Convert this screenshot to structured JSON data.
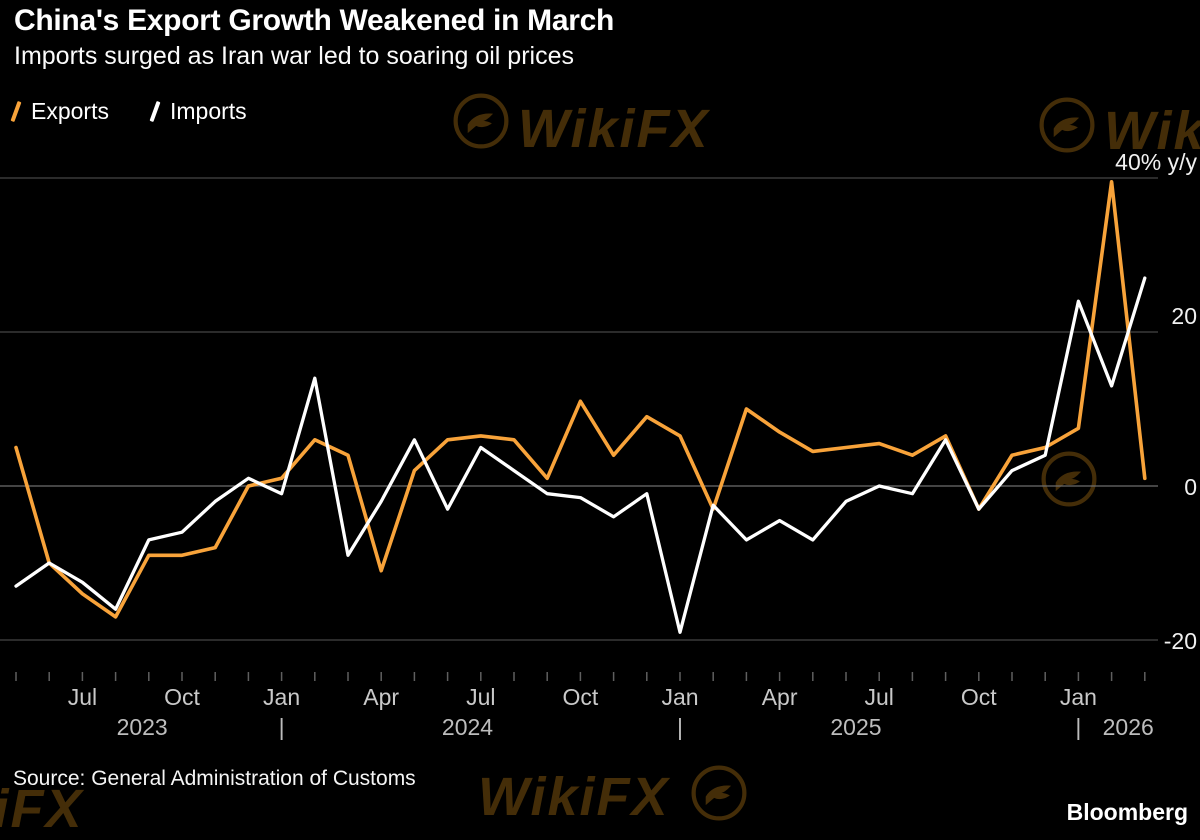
{
  "header": {
    "title": "China's Export Growth Weakened in March",
    "subtitle": "Imports surged as Iran war led to soaring oil prices"
  },
  "legend": [
    {
      "label": "Exports",
      "color": "#F8A33A"
    },
    {
      "label": "Imports",
      "color": "#FFFFFF"
    }
  ],
  "footer": {
    "source": "Source: General Administration of Customs",
    "brand": "Bloomberg"
  },
  "watermark": {
    "text": "WikiFX"
  },
  "colors": {
    "background": "#000000",
    "exports_line": "#F8A33A",
    "imports_line": "#FFFFFF",
    "grid": "#454545",
    "zero_line": "#6e6e6e",
    "month_tick": "#5f5f5f",
    "y_axis_text": "#f0f0f0",
    "x_tick_text": "#c9c9c9",
    "year_text": "#bdbdbd"
  },
  "chart_data": {
    "type": "line",
    "title": "China's Export Growth Weakened in March",
    "subtitle": "Imports surged as Iran war led to soaring oil prices",
    "ylabel": "% y/y",
    "grid": true,
    "legend_position": "top-left",
    "x": [
      "May 2023",
      "Jun 2023",
      "Jul 2023",
      "Aug 2023",
      "Sep 2023",
      "Oct 2023",
      "Nov 2023",
      "Dec 2023",
      "Jan 2024",
      "Feb 2024",
      "Mar 2024",
      "Apr 2024",
      "May 2024",
      "Jun 2024",
      "Jul 2024",
      "Aug 2024",
      "Sep 2024",
      "Oct 2024",
      "Nov 2024",
      "Dec 2024",
      "Jan 2025",
      "Feb 2025",
      "Mar 2025",
      "Apr 2025",
      "May 2025",
      "Jun 2025",
      "Jul 2025",
      "Aug 2025",
      "Sep 2025",
      "Oct 2025",
      "Nov 2025",
      "Dec 2025",
      "Jan 2026",
      "Feb 2026",
      "Mar 2026"
    ],
    "series": [
      {
        "name": "Exports",
        "color": "#F8A33A",
        "values": [
          5,
          -10,
          -14,
          -17,
          -9,
          -9,
          -8,
          0,
          1,
          6,
          4,
          -11,
          2,
          6,
          6.5,
          6,
          1,
          11,
          4,
          9,
          6.5,
          -3,
          10,
          7,
          4.5,
          5,
          5.5,
          4,
          6.5,
          -3,
          4,
          5,
          7.5,
          39.5,
          1
        ]
      },
      {
        "name": "Imports",
        "color": "#FFFFFF",
        "values": [
          -13,
          -10,
          -12.5,
          -16,
          -7,
          -6,
          -2,
          1,
          -1,
          14,
          -9,
          -2,
          6,
          -3,
          5,
          2,
          -1,
          -1.5,
          -4,
          -1,
          -19,
          -2.5,
          -7,
          -4.5,
          -7,
          -2,
          0,
          -1,
          6,
          -3,
          2,
          4,
          24,
          13,
          27
        ]
      }
    ],
    "y_axis": {
      "ticks": [
        40,
        20,
        0,
        -20
      ],
      "tick_labels": [
        "40% y/y",
        "20",
        "0",
        "-20"
      ],
      "range": [
        -24,
        44
      ]
    },
    "x_ticks": [
      {
        "index": 2,
        "label": "Jul"
      },
      {
        "index": 5,
        "label": "Oct"
      },
      {
        "index": 8,
        "label": "Jan"
      },
      {
        "index": 11,
        "label": "Apr"
      },
      {
        "index": 14,
        "label": "Jul"
      },
      {
        "index": 17,
        "label": "Oct"
      },
      {
        "index": 20,
        "label": "Jan"
      },
      {
        "index": 23,
        "label": "Apr"
      },
      {
        "index": 26,
        "label": "Jul"
      },
      {
        "index": 29,
        "label": "Oct"
      },
      {
        "index": 32,
        "label": "Jan"
      }
    ],
    "year_row": [
      {
        "label": "2023",
        "index": 3.8
      },
      {
        "label": "|",
        "index": 8
      },
      {
        "label": "2024",
        "index": 13.6
      },
      {
        "label": "|",
        "index": 20
      },
      {
        "label": "2025",
        "index": 25.3
      },
      {
        "label": "|",
        "index": 32
      },
      {
        "label": "2026",
        "index": 33.5
      }
    ]
  }
}
